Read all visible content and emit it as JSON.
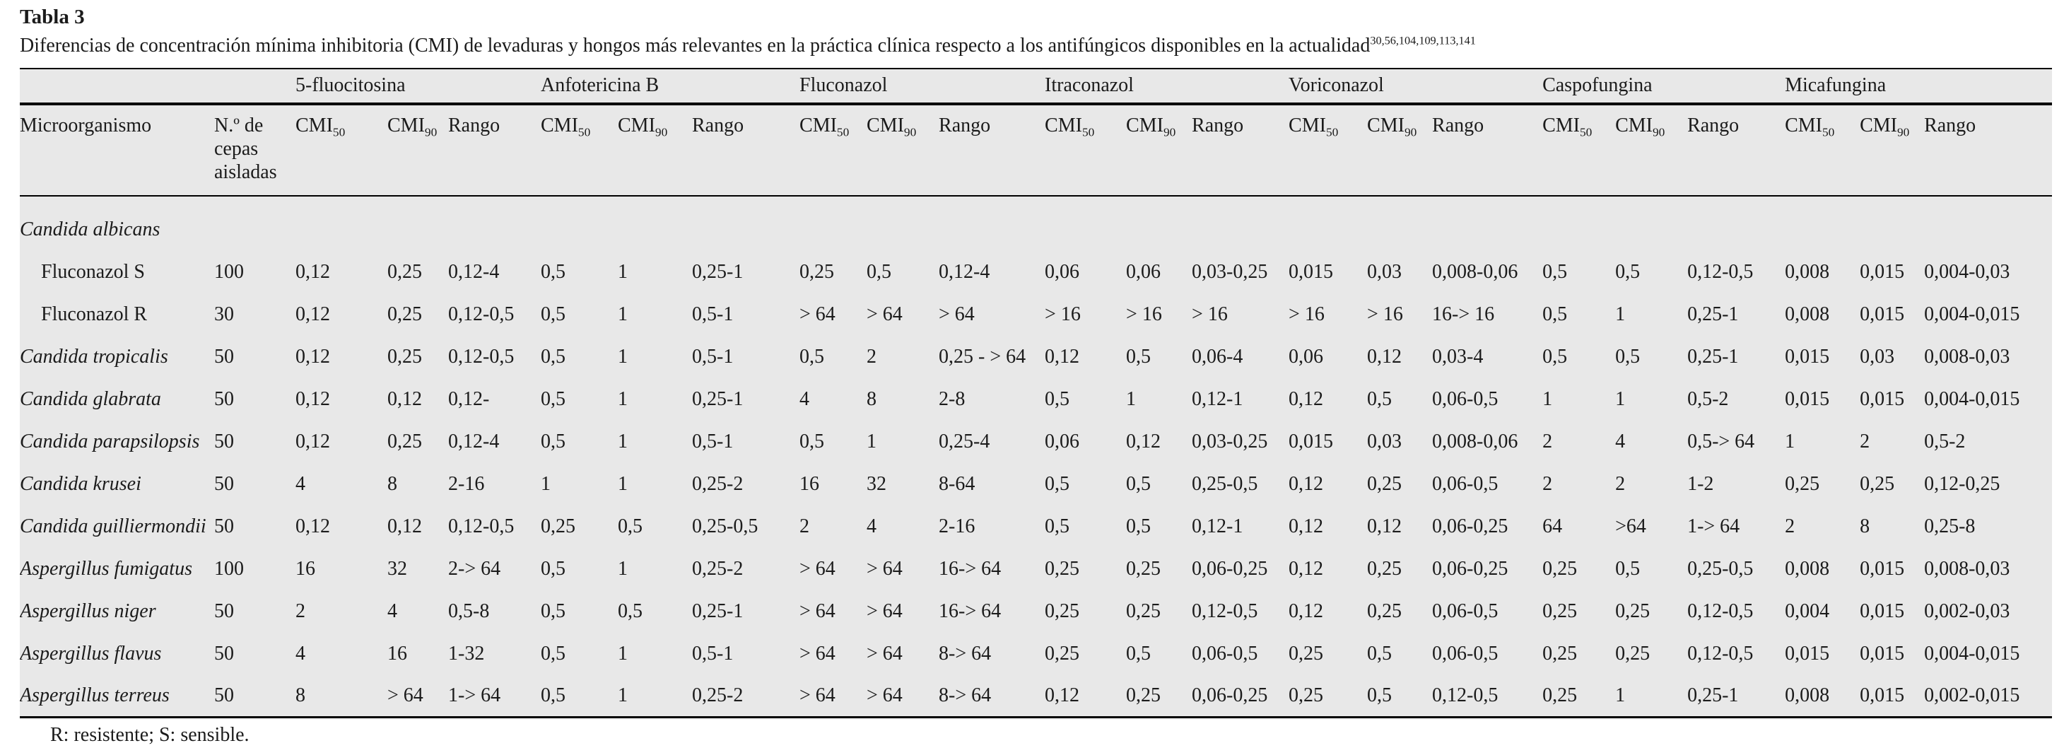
{
  "page": {
    "title": "Tabla 3",
    "caption": "Diferencias de concentración mínima inhibitoria (CMI) de levaduras y hongos más relevantes en la práctica clínica respecto a los antifúngicos disponibles en la actualidad",
    "caption_refs": "30,56,104,109,113,141",
    "footnote": "R: resistente; S: sensible."
  },
  "colors": {
    "table_background": "#e8e8e8",
    "rule": "#000000",
    "text": "#1b1b1b"
  },
  "table": {
    "microorganism_header": "Microorganismo",
    "n_header": "N.º de cepas aisladas",
    "drug_groups": [
      "5-fluocitosina",
      "Anfotericina B",
      "Fluconazol",
      "Itraconazol",
      "Voriconazol",
      "Caspofungina",
      "Micafungina"
    ],
    "header": {
      "cmi_label": "CMI",
      "cmi50_sub": "50",
      "cmi90_sub": "90",
      "rango_label": "Rango"
    },
    "rows": [
      {
        "name": "Candida albicans",
        "italic": true,
        "group": true
      },
      {
        "name": "Fluconazol S",
        "indent": true,
        "n": "100",
        "values": [
          "0,12",
          "0,25",
          "0,12-4",
          "0,5",
          "1",
          "0,25-1",
          "0,25",
          "0,5",
          "0,12-4",
          "0,06",
          "0,06",
          "0,03-0,25",
          "0,015",
          "0,03",
          "0,008-0,06",
          "0,5",
          "0,5",
          "0,12-0,5",
          "0,008",
          "0,015",
          "0,004-0,03"
        ]
      },
      {
        "name": "Fluconazol R",
        "indent": true,
        "n": "30",
        "values": [
          "0,12",
          "0,25",
          "0,12-0,5",
          "0,5",
          "1",
          "0,5-1",
          "> 64",
          "> 64",
          "> 64",
          "> 16",
          "> 16",
          "> 16",
          "> 16",
          "> 16",
          "16-> 16",
          "0,5",
          "1",
          "0,25-1",
          "0,008",
          "0,015",
          "0,004-0,015"
        ]
      },
      {
        "name": "Candida tropicalis",
        "italic": true,
        "n": "50",
        "values": [
          "0,12",
          "0,25",
          "0,12-0,5",
          "0,5",
          "1",
          "0,5-1",
          "0,5",
          "2",
          "0,25 - > 64",
          "0,12",
          "0,5",
          "0,06-4",
          "0,06",
          "0,12",
          "0,03-4",
          "0,5",
          "0,5",
          "0,25-1",
          "0,015",
          "0,03",
          "0,008-0,03"
        ]
      },
      {
        "name": "Candida glabrata",
        "italic": true,
        "n": "50",
        "values": [
          "0,12",
          "0,12",
          "0,12-",
          "0,5",
          "1",
          "0,25-1",
          "4",
          "8",
          "2-8",
          "0,5",
          "1",
          "0,12-1",
          "0,12",
          "0,5",
          "0,06-0,5",
          "1",
          "1",
          "0,5-2",
          "0,015",
          "0,015",
          "0,004-0,015"
        ]
      },
      {
        "name": "Candida parapsilopsis",
        "italic": true,
        "n": "50",
        "values": [
          "0,12",
          "0,25",
          "0,12-4",
          "0,5",
          "1",
          "0,5-1",
          "0,5",
          "1",
          "0,25-4",
          "0,06",
          "0,12",
          "0,03-0,25",
          "0,015",
          "0,03",
          "0,008-0,06",
          "2",
          "4",
          "0,5-> 64",
          "1",
          "2",
          "0,5-2"
        ]
      },
      {
        "name": "Candida krusei",
        "italic": true,
        "n": "50",
        "values": [
          "4",
          "8",
          "2-16",
          "1",
          "1",
          "0,25-2",
          "16",
          "32",
          "8-64",
          "0,5",
          "0,5",
          "0,25-0,5",
          "0,12",
          "0,25",
          "0,06-0,5",
          "2",
          "2",
          "1-2",
          "0,25",
          "0,25",
          "0,12-0,25"
        ]
      },
      {
        "name": "Candida guilliermondii",
        "italic": true,
        "n": "50",
        "values": [
          "0,12",
          "0,12",
          "0,12-0,5",
          "0,25",
          "0,5",
          "0,25-0,5",
          "2",
          "4",
          "2-16",
          "0,5",
          "0,5",
          "0,12-1",
          "0,12",
          "0,12",
          "0,06-0,25",
          "64",
          ">64",
          "1-> 64",
          "2",
          "8",
          "0,25-8"
        ]
      },
      {
        "name": "Aspergillus fumigatus",
        "italic": true,
        "n": "100",
        "values": [
          "16",
          "32",
          "2-> 64",
          "0,5",
          "1",
          "0,25-2",
          "> 64",
          "> 64",
          "16-> 64",
          "0,25",
          "0,25",
          "0,06-0,25",
          "0,12",
          "0,25",
          "0,06-0,25",
          "0,25",
          "0,5",
          "0,25-0,5",
          "0,008",
          "0,015",
          "0,008-0,03"
        ]
      },
      {
        "name": "Aspergillus niger",
        "italic": true,
        "n": "50",
        "values": [
          "2",
          "4",
          "0,5-8",
          "0,5",
          "0,5",
          "0,25-1",
          "> 64",
          "> 64",
          "16-> 64",
          "0,25",
          "0,25",
          "0,12-0,5",
          "0,12",
          "0,25",
          "0,06-0,5",
          "0,25",
          "0,25",
          "0,12-0,5",
          "0,004",
          "0,015",
          "0,002-0,03"
        ]
      },
      {
        "name": "Aspergillus flavus",
        "italic": true,
        "n": "50",
        "values": [
          "4",
          "16",
          "1-32",
          "0,5",
          "1",
          "0,5-1",
          "> 64",
          "> 64",
          "8-> 64",
          "0,25",
          "0,5",
          "0,06-0,5",
          "0,25",
          "0,5",
          "0,06-0,5",
          "0,25",
          "0,25",
          "0,12-0,5",
          "0,015",
          "0,015",
          "0,004-0,015"
        ]
      },
      {
        "name": "Aspergillus terreus",
        "italic": true,
        "n": "50",
        "values": [
          "8",
          "> 64",
          "1-> 64",
          "0,5",
          "1",
          "0,25-2",
          "> 64",
          "> 64",
          "8-> 64",
          "0,12",
          "0,25",
          "0,06-0,25",
          "0,25",
          "0,5",
          "0,12-0,5",
          "0,25",
          "1",
          "0,25-1",
          "0,008",
          "0,015",
          "0,002-0,015"
        ]
      }
    ]
  }
}
